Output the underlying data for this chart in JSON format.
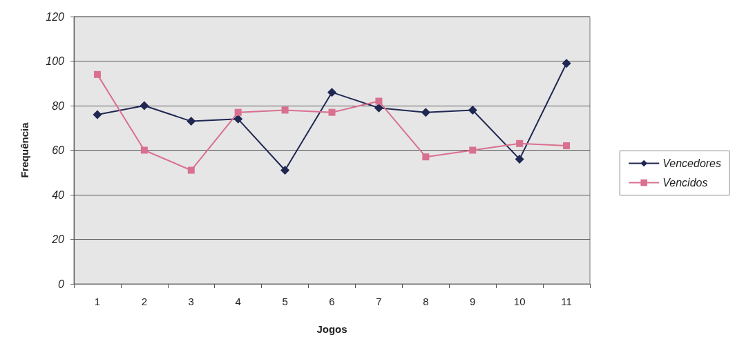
{
  "chart_data": {
    "type": "line",
    "xlabel": "Jogos",
    "ylabel": "Frequência",
    "categories": [
      "1",
      "2",
      "3",
      "4",
      "5",
      "6",
      "7",
      "8",
      "9",
      "10",
      "11"
    ],
    "series": [
      {
        "name": "Vencedores",
        "color": "#1f2752",
        "marker": "diamond",
        "values": [
          76,
          80,
          73,
          74,
          51,
          86,
          79,
          77,
          78,
          56,
          99
        ]
      },
      {
        "name": "Vencidos",
        "color": "#d9708f",
        "marker": "square",
        "values": [
          94,
          60,
          51,
          77,
          78,
          77,
          82,
          57,
          60,
          63,
          62
        ]
      }
    ],
    "ylim": [
      0,
      120
    ],
    "yticks": [
      0,
      20,
      40,
      60,
      80,
      100,
      120
    ],
    "grid": "y",
    "legend": "right"
  }
}
